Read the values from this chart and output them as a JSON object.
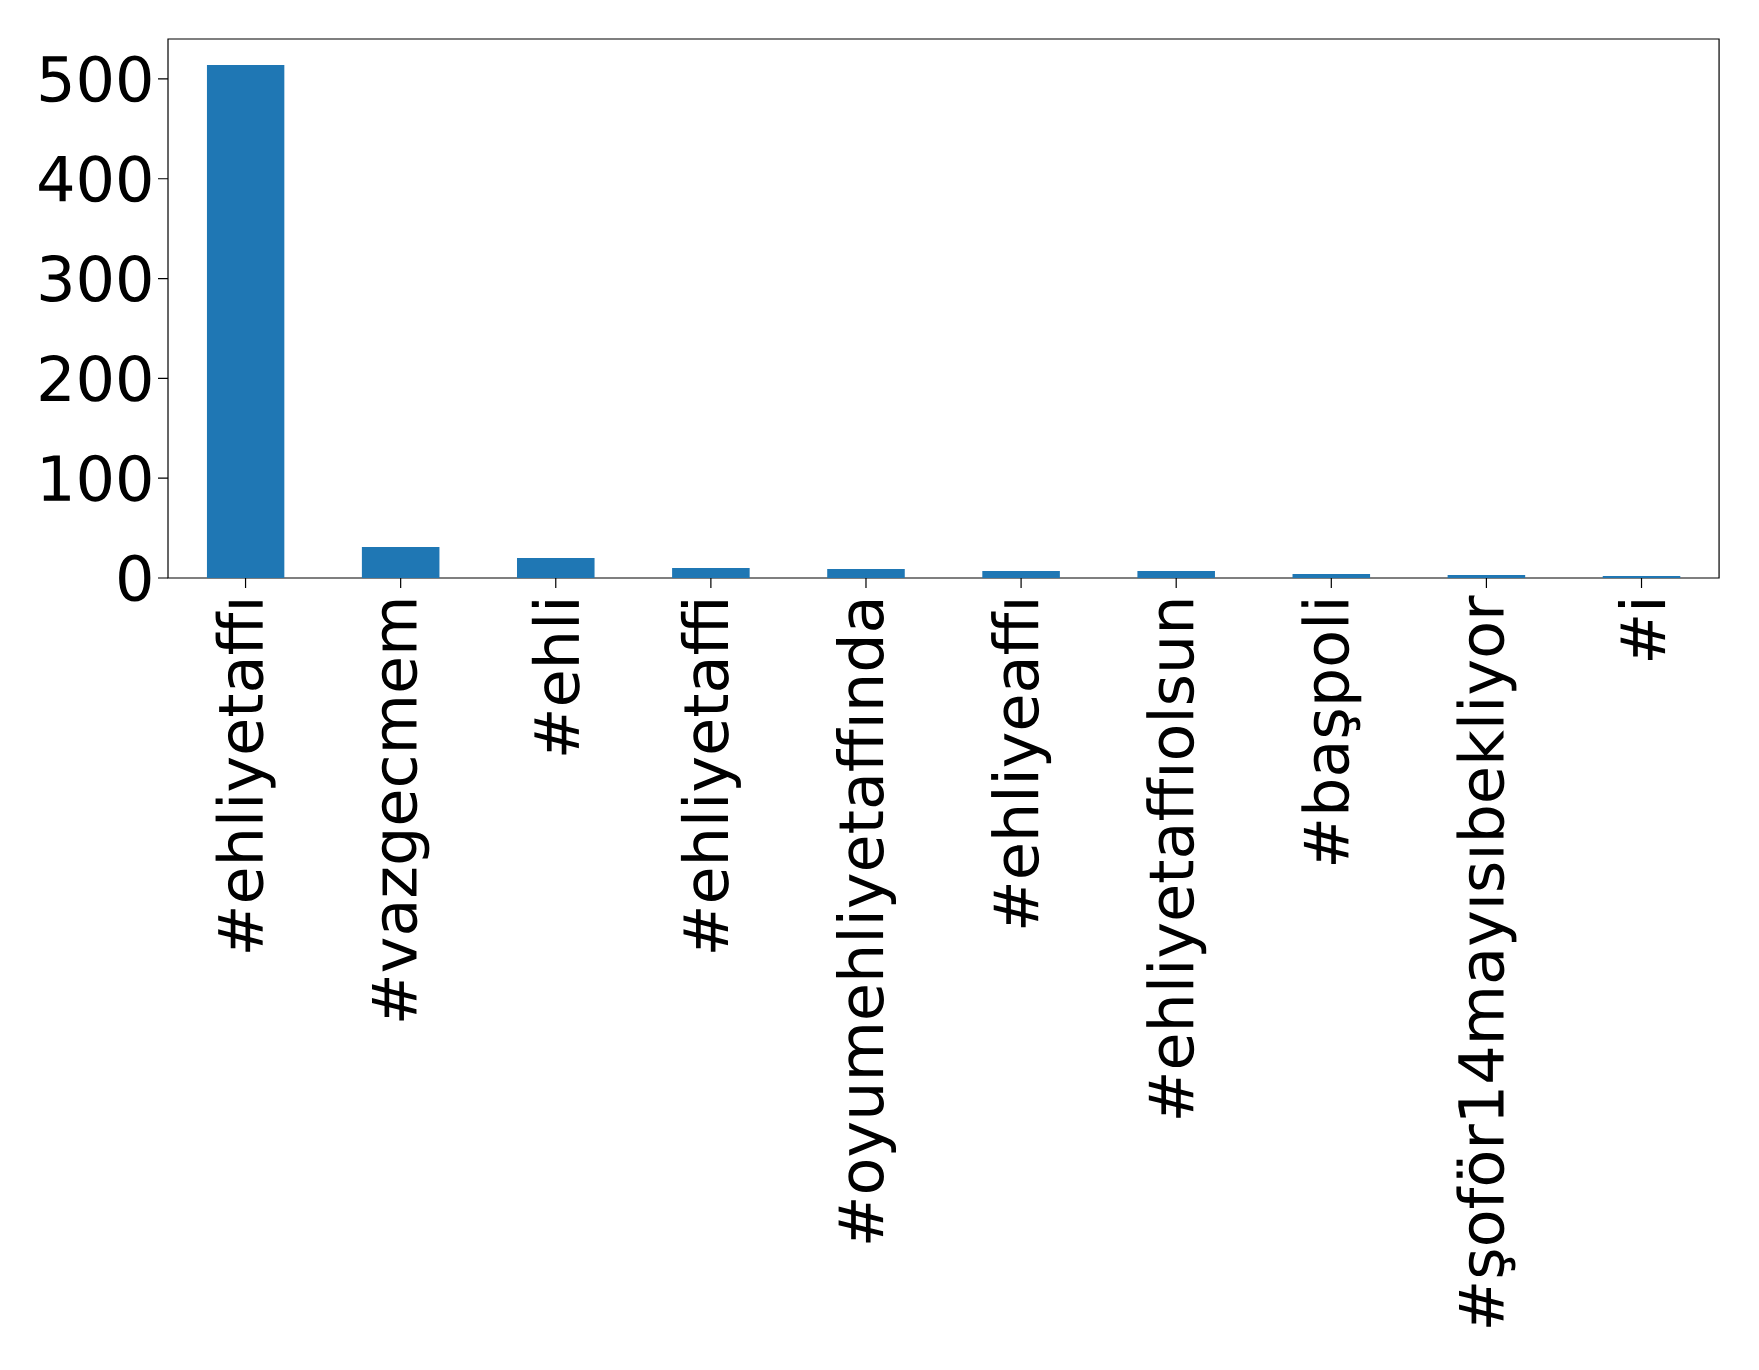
{
  "chart_data": {
    "type": "bar",
    "categories": [
      "#ehliyetaffı",
      "#vazgecmem",
      "#ehli",
      "#ehliyetaffi",
      "#oyumehliyetaffında",
      "#ehliyeaffı",
      "#ehliyetaffıolsun",
      "#başpoli",
      "#şoför14mayısıbekliyor",
      "#i"
    ],
    "values": [
      514,
      31,
      20,
      10,
      9,
      7,
      7,
      4,
      3,
      2
    ],
    "color": "#1f77b4",
    "ylim": [
      0,
      540
    ],
    "yticks": [
      0,
      100,
      200,
      300,
      400,
      500
    ],
    "grid": false
  }
}
